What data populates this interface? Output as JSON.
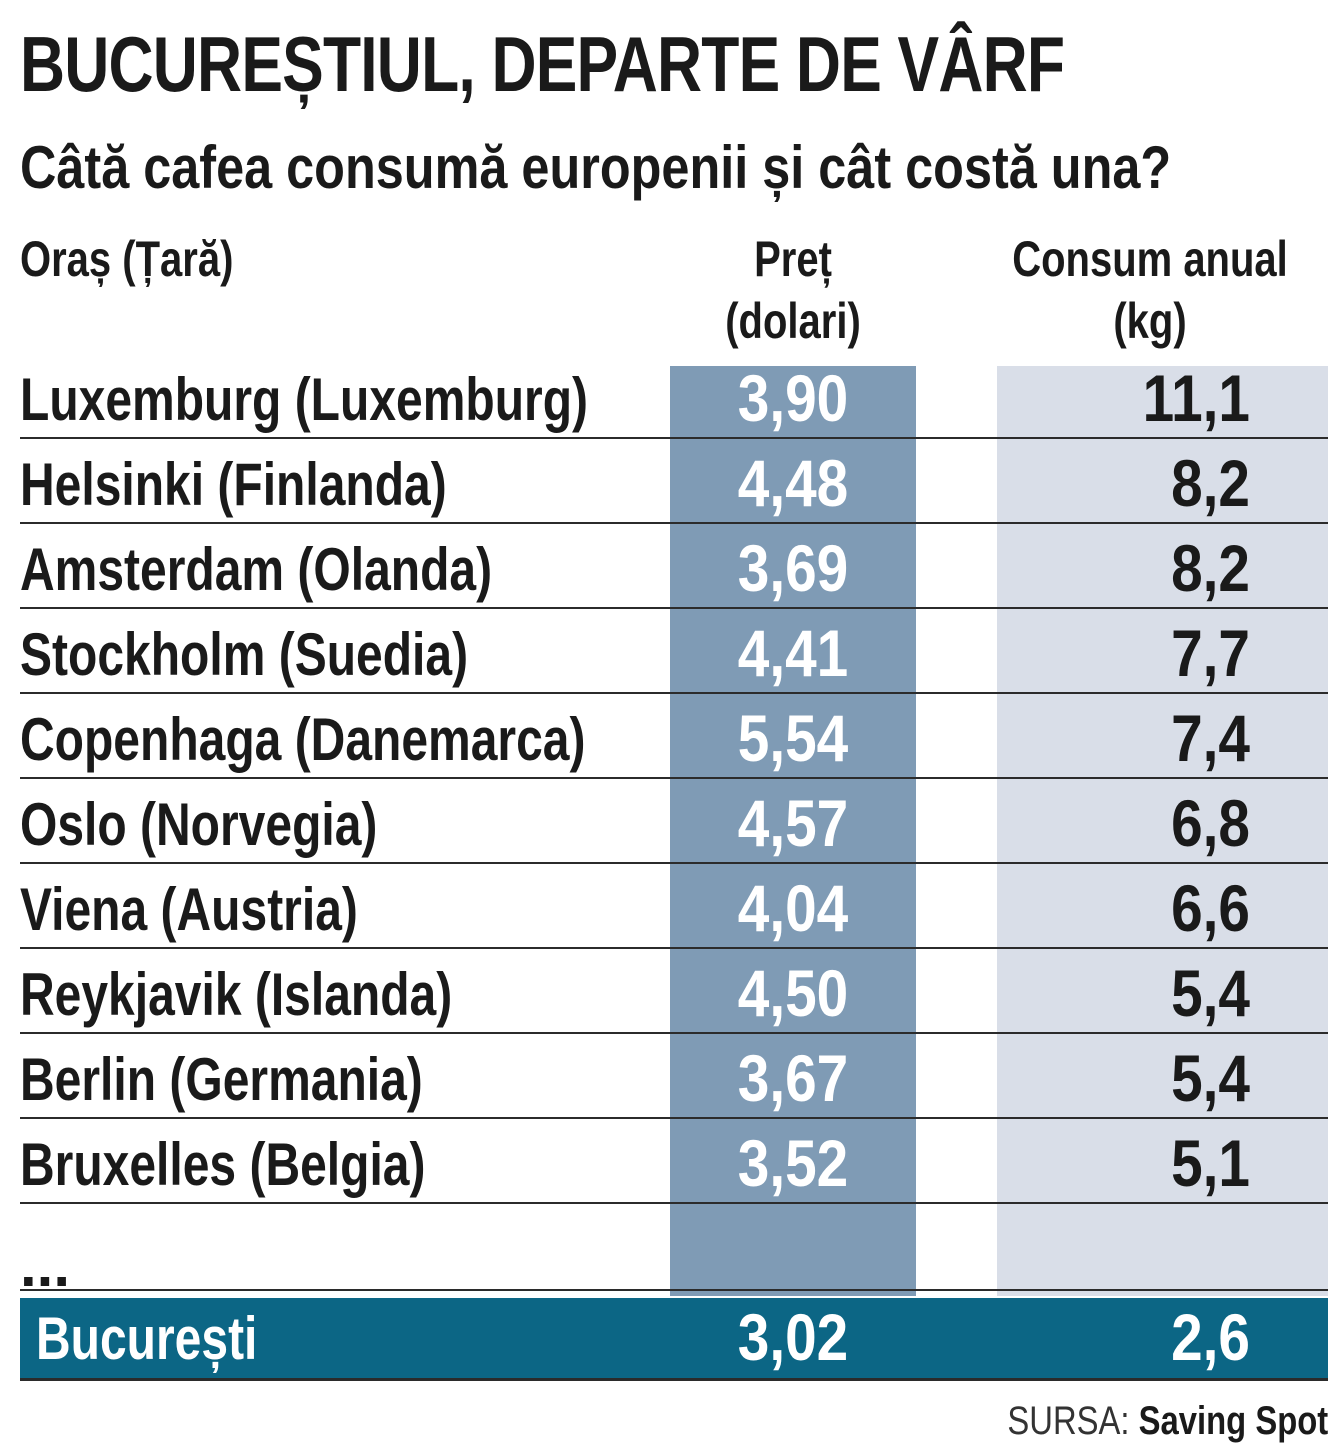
{
  "chart_data": {
    "type": "table",
    "title": "BUCUREȘTIUL, DEPARTE DE VÂRF",
    "subtitle": "Câtă cafea consumă europenii și cât costă una?",
    "columns": {
      "city_line1": "Oraș (Țară)",
      "price_line1": "Preț",
      "price_line2": "(dolari)",
      "cons_line1": "Consum anual",
      "cons_line2": "(kg)"
    },
    "rows": [
      {
        "city": "Luxemburg (Luxemburg)",
        "price": "3,90",
        "consumption": "11,1"
      },
      {
        "city": "Helsinki (Finlanda)",
        "price": "4,48",
        "consumption": "8,2"
      },
      {
        "city": "Amsterdam (Olanda)",
        "price": "3,69",
        "consumption": "8,2"
      },
      {
        "city": "Stockholm (Suedia)",
        "price": "4,41",
        "consumption": "7,7"
      },
      {
        "city": "Copenhaga (Danemarca)",
        "price": "5,54",
        "consumption": "7,4"
      },
      {
        "city": "Oslo (Norvegia)",
        "price": "4,57",
        "consumption": "6,8"
      },
      {
        "city": "Viena (Austria)",
        "price": "4,04",
        "consumption": "6,6"
      },
      {
        "city": "Reykjavik (Islanda)",
        "price": "4,50",
        "consumption": "5,4"
      },
      {
        "city": "Berlin (Germania)",
        "price": "3,67",
        "consumption": "5,4"
      },
      {
        "city": "Bruxelles (Belgia)",
        "price": "3,52",
        "consumption": "5,1"
      }
    ],
    "ellipsis": "...",
    "highlight": {
      "city": "București",
      "price": "3,02",
      "consumption": "2,6"
    },
    "source_label": "SURSA:",
    "source_name": "Saving Spot",
    "colors": {
      "price_band": "#7f9bb5",
      "consumption_band": "#d9dee8",
      "highlight_row": "#0c6685"
    }
  }
}
